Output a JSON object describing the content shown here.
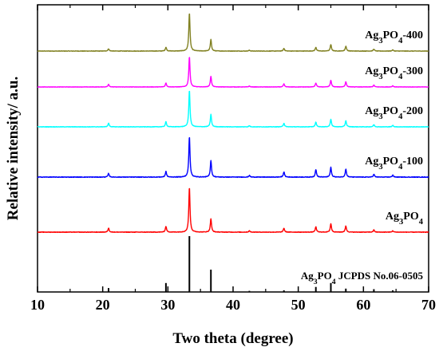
{
  "chart_data": {
    "type": "line",
    "xlabel": "Two  theta (degree)",
    "ylabel": "Relative intensity/ a.u.",
    "xlim": [
      10,
      70
    ],
    "x_ticks": [
      "10",
      "20",
      "30",
      "40",
      "50",
      "60",
      "70"
    ],
    "y_ticks_shown": false,
    "grid": false,
    "peaks_2theta": [
      20.9,
      29.7,
      33.3,
      36.6,
      42.5,
      47.8,
      52.7,
      55.0,
      57.3,
      61.6,
      64.5
    ],
    "series": [
      {
        "name": "Ag3PO4-400",
        "label_base": "Ag",
        "label_parts": [
          {
            "t": "Ag"
          },
          {
            "t": "3",
            "sub": true
          },
          {
            "t": "PO"
          },
          {
            "t": "4",
            "sub": true
          },
          {
            "t": "-400"
          }
        ],
        "color": "#808020",
        "intensities": [
          0.06,
          0.1,
          1.0,
          0.3,
          0.02,
          0.07,
          0.1,
          0.17,
          0.13,
          0.05,
          0.03
        ],
        "noise": 0.012
      },
      {
        "name": "Ag3PO4-300",
        "label_parts": [
          {
            "t": "Ag"
          },
          {
            "t": "3",
            "sub": true
          },
          {
            "t": "PO"
          },
          {
            "t": "4",
            "sub": true
          },
          {
            "t": "-300"
          }
        ],
        "color": "#ff00ff",
        "intensities": [
          0.09,
          0.13,
          1.0,
          0.35,
          0.03,
          0.1,
          0.13,
          0.22,
          0.17,
          0.06,
          0.04
        ],
        "noise": 0.012
      },
      {
        "name": "Ag3PO4-200",
        "label_parts": [
          {
            "t": "Ag"
          },
          {
            "t": "3",
            "sub": true
          },
          {
            "t": "PO"
          },
          {
            "t": "4",
            "sub": true
          },
          {
            "t": "-200"
          }
        ],
        "color": "#00ffff",
        "intensities": [
          0.1,
          0.14,
          1.0,
          0.34,
          0.03,
          0.1,
          0.13,
          0.21,
          0.17,
          0.06,
          0.04
        ],
        "noise": 0.012
      },
      {
        "name": "Ag3PO4-100",
        "label_parts": [
          {
            "t": "Ag"
          },
          {
            "t": "3",
            "sub": true
          },
          {
            "t": "PO"
          },
          {
            "t": "4",
            "sub": true
          },
          {
            "t": "-100"
          }
        ],
        "color": "#0000ff",
        "intensities": [
          0.09,
          0.14,
          1.0,
          0.41,
          0.04,
          0.13,
          0.19,
          0.24,
          0.2,
          0.07,
          0.05
        ],
        "noise": 0.015
      },
      {
        "name": "Ag3PO4",
        "label_parts": [
          {
            "t": "Ag"
          },
          {
            "t": "3",
            "sub": true
          },
          {
            "t": "PO"
          },
          {
            "t": "4",
            "sub": true
          }
        ],
        "color": "#ff0000",
        "intensities": [
          0.09,
          0.13,
          1.0,
          0.3,
          0.03,
          0.09,
          0.12,
          0.19,
          0.14,
          0.05,
          0.03
        ],
        "noise": 0.012
      }
    ],
    "reference": {
      "name": "Ag3PO4  JCPDS No.06-0505",
      "label_parts": [
        {
          "t": "Ag"
        },
        {
          "t": "3",
          "sub": true
        },
        {
          "t": "PO"
        },
        {
          "t": "4",
          "sub": true
        },
        {
          "t": "  JCPDS No.06-0505"
        }
      ],
      "color": "#000000",
      "intensities": [
        0.07,
        0.16,
        1.0,
        0.4,
        0.02,
        0.03,
        0.09,
        0.16,
        0.06,
        0.05,
        0.03
      ]
    }
  }
}
